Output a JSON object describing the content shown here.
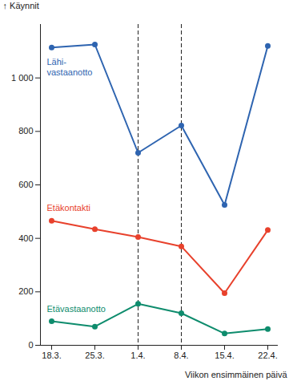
{
  "chart_data": {
    "type": "line",
    "y_label": "Käynnit",
    "x_label": "Viikon ensimmäinen päivä",
    "categories": [
      "18.3.",
      "25.3.",
      "1.4.",
      "8.4.",
      "15.4.",
      "22.4."
    ],
    "reference_lines": [
      "1.4.",
      "8.4."
    ],
    "series": [
      {
        "name": "Lähi-\nvastaanotto",
        "color": "#2e64b0",
        "values": [
          1114,
          1125,
          720,
          822,
          525,
          1120
        ]
      },
      {
        "name": "Etäkontakti",
        "color": "#e8412c",
        "values": [
          466,
          434,
          405,
          370,
          195,
          431
        ]
      },
      {
        "name": "Etävastaanotto",
        "color": "#0e8c6d",
        "values": [
          90,
          70,
          155,
          120,
          44,
          61
        ]
      }
    ],
    "ylim": [
      0,
      1200
    ],
    "yticks": [
      0,
      200,
      400,
      600,
      800,
      {
        "value": 1000,
        "label": "1 000"
      }
    ],
    "marker": "circle",
    "grid": false
  }
}
